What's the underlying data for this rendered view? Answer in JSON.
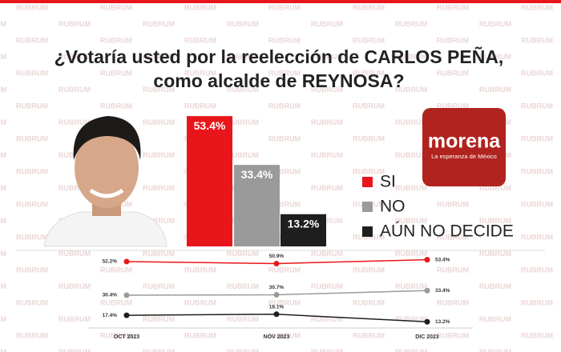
{
  "title": [
    "¿Votaría usted por la reelección de CARLOS PEÑA,",
    "como alcalde de REYNOSA?"
  ],
  "watermark": "RUBRUM",
  "logo": {
    "name": "morena",
    "tagline": "La esperanza de México"
  },
  "chart_data": [
    {
      "type": "bar",
      "categories": [
        "SI",
        "NO",
        "AÚN NO DECIDE"
      ],
      "values": [
        53.4,
        33.4,
        13.2
      ],
      "value_labels": [
        "53.4%",
        "33.4%",
        "13.2%"
      ],
      "colors": [
        "#e8161b",
        "#9a9a9a",
        "#1e1e1e"
      ]
    },
    {
      "type": "line",
      "categories": [
        "OCT 2023",
        "NOV 2023",
        "DIC 2023"
      ],
      "series": [
        {
          "color": "#e8161b",
          "values": [
            52.2,
            50.9,
            53.4
          ],
          "value_labels": [
            "52.2%",
            "50.9%",
            "53.4%"
          ]
        },
        {
          "color": "#9a9a9a",
          "values": [
            30.4,
            30.7,
            33.4
          ],
          "value_labels": [
            "30.4%",
            "30.7%",
            "33.4%"
          ]
        },
        {
          "color": "#1e1e1e",
          "values": [
            17.4,
            18.1,
            13.2
          ],
          "value_labels": [
            "17.4%",
            "18.1%",
            "13.2%"
          ]
        }
      ]
    }
  ]
}
